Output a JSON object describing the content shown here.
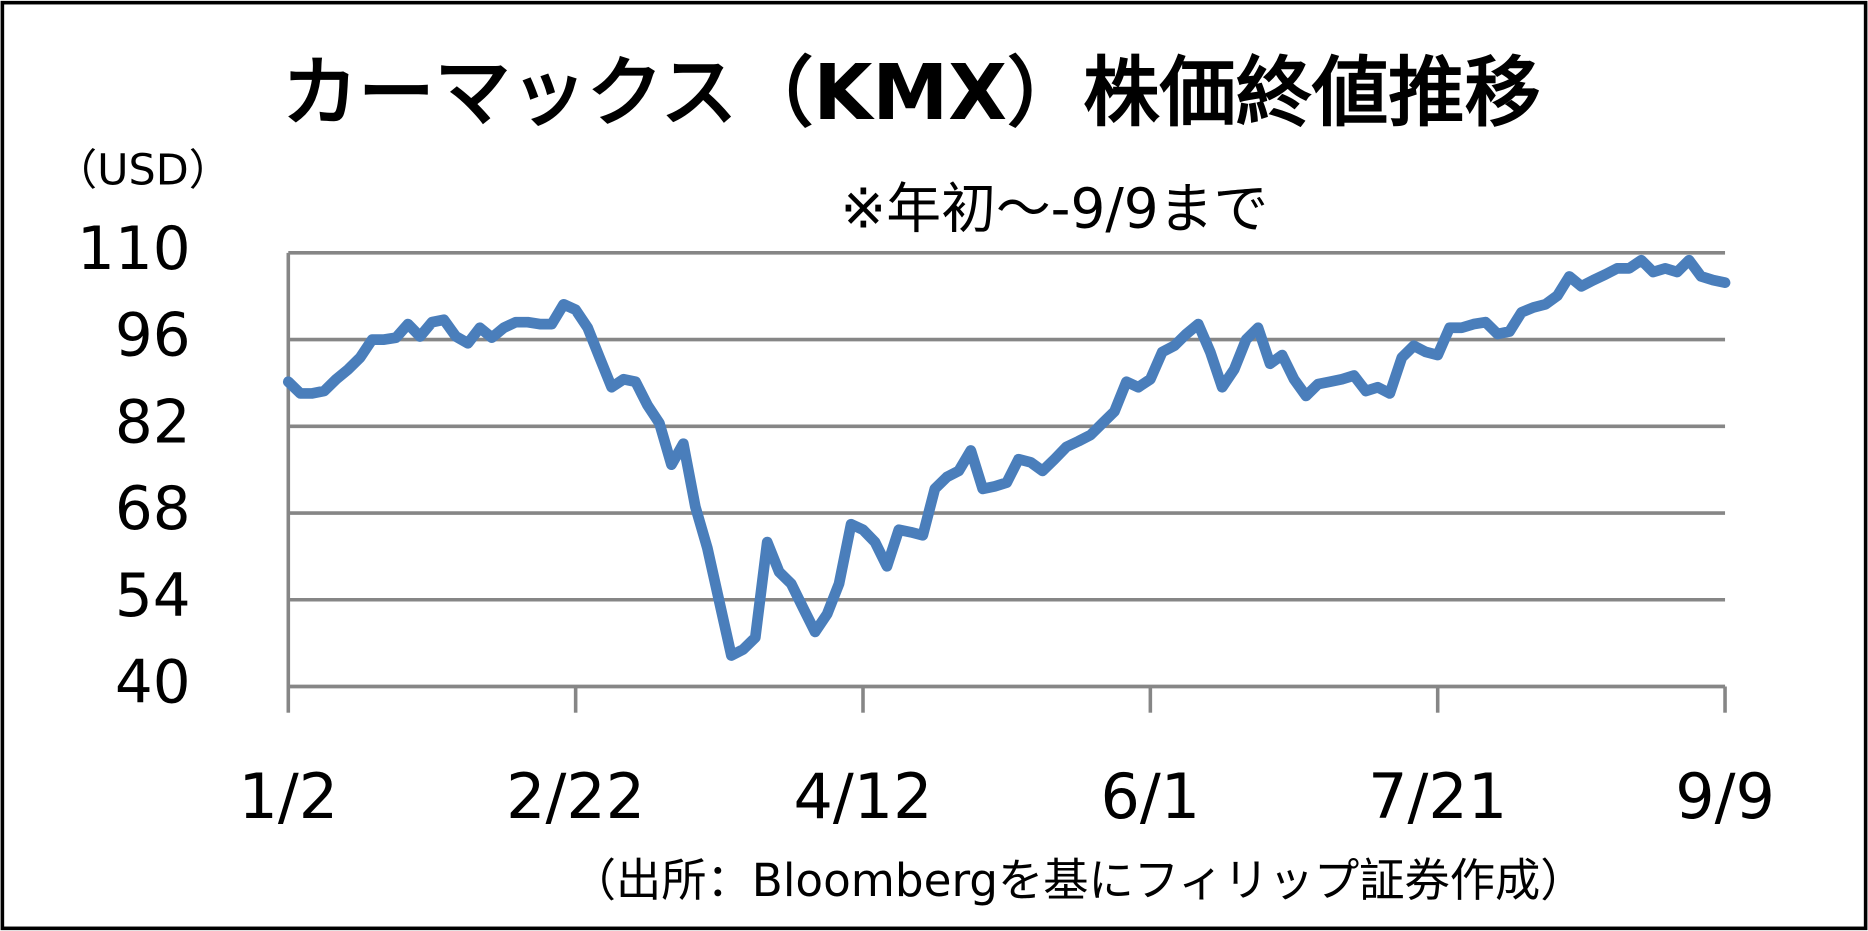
{
  "chart_data": {
    "type": "line",
    "title": "カーマックス（KMX）株価終値推移",
    "subtitle": "※年初～-9/9まで",
    "y_unit": "（USD）",
    "source": "（出所：Bloombergを基にフィリップ証券作成）",
    "categories": [
      "1/2",
      null,
      null,
      null,
      null,
      null,
      null,
      null,
      null,
      null,
      null,
      null,
      null,
      null,
      null,
      null,
      null,
      null,
      null,
      null,
      null,
      null,
      null,
      null,
      "2/22",
      null,
      null,
      null,
      null,
      null,
      null,
      null,
      null,
      null,
      null,
      null,
      null,
      null,
      null,
      null,
      null,
      null,
      null,
      null,
      null,
      null,
      null,
      null,
      "4/12",
      null,
      null,
      null,
      null,
      null,
      null,
      null,
      null,
      null,
      null,
      null,
      null,
      null,
      null,
      null,
      null,
      null,
      null,
      null,
      null,
      null,
      null,
      null,
      "6/1",
      null,
      null,
      null,
      null,
      null,
      null,
      null,
      null,
      null,
      null,
      null,
      null,
      null,
      null,
      null,
      null,
      null,
      null,
      null,
      null,
      null,
      null,
      null,
      "7/21",
      null,
      null,
      null,
      null,
      null,
      null,
      null,
      null,
      null,
      null,
      null,
      null,
      null,
      null,
      null,
      null,
      null,
      null,
      null,
      null,
      null,
      null,
      null,
      "9/9"
    ],
    "values": [
      89.2,
      87.3,
      87.3,
      87.7,
      89.6,
      91.2,
      93.1,
      96.0,
      96.0,
      96.3,
      98.5,
      96.5,
      98.8,
      99.2,
      96.5,
      95.4,
      97.9,
      96.3,
      97.9,
      98.8,
      98.8,
      98.5,
      98.5,
      101.7,
      100.8,
      97.9,
      93.1,
      88.3,
      89.6,
      89.2,
      85.4,
      82.5,
      75.8,
      79.2,
      69.0,
      62.3,
      53.7,
      45.0,
      46.0,
      47.9,
      63.3,
      58.5,
      56.6,
      52.7,
      48.8,
      51.7,
      56.6,
      66.2,
      65.3,
      63.3,
      59.4,
      65.3,
      64.9,
      64.4,
      71.9,
      73.8,
      74.8,
      78.1,
      71.9,
      72.3,
      72.9,
      76.7,
      76.2,
      74.8,
      76.7,
      78.7,
      79.6,
      80.6,
      82.5,
      84.4,
      89.2,
      88.3,
      89.6,
      94.0,
      95.0,
      96.9,
      98.5,
      94.0,
      88.3,
      91.2,
      96.0,
      97.9,
      92.1,
      93.5,
      89.6,
      86.9,
      88.8,
      89.2,
      89.6,
      90.2,
      87.7,
      88.3,
      87.3,
      93.1,
      95.0,
      94.0,
      93.5,
      97.9,
      97.9,
      98.5,
      98.8,
      96.9,
      97.3,
      100.4,
      101.2,
      101.7,
      103.1,
      106.2,
      104.6,
      105.6,
      106.5,
      107.5,
      107.5,
      108.8,
      106.9,
      107.5,
      106.9,
      108.8,
      106.2,
      105.6,
      105.2
    ],
    "color": "#4a7ebb",
    "ylim": [
      40,
      110
    ],
    "yticks": [
      40,
      54,
      68,
      82,
      96,
      110
    ],
    "grid": true
  }
}
